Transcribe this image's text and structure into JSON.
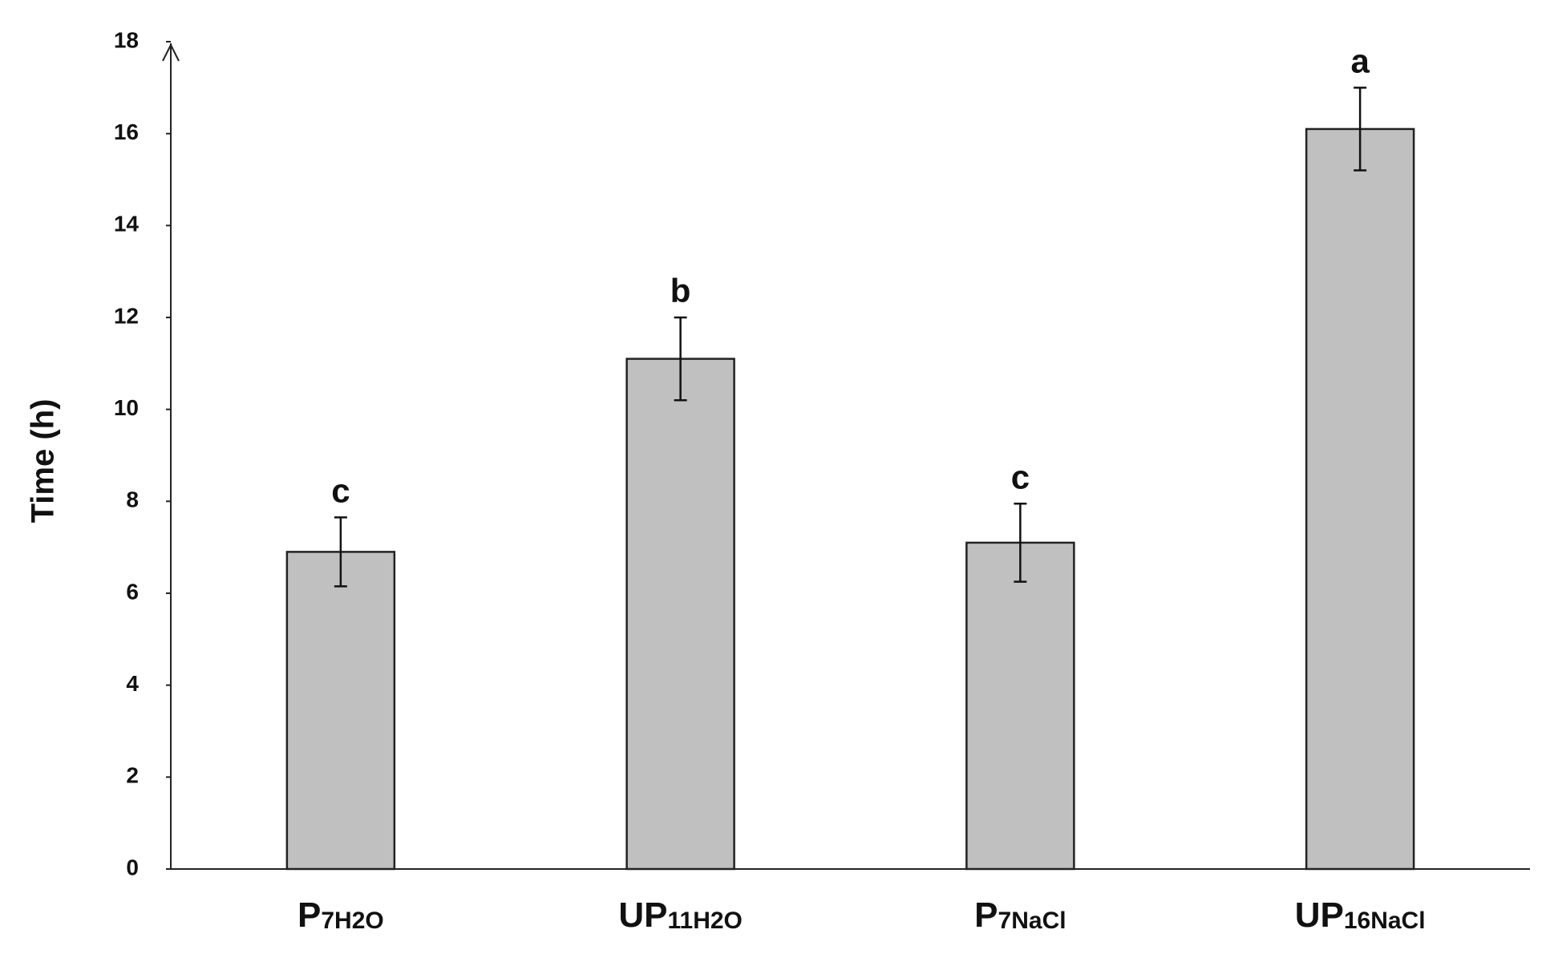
{
  "chart_data": {
    "type": "bar",
    "y_label": "Time (h)",
    "categories": [
      "P",
      "UP",
      "P",
      "UP"
    ],
    "category_subscripts": [
      "7H2O",
      "11H2O",
      "7NaCl",
      "16NaCl"
    ],
    "values": [
      6.9,
      11.1,
      7.1,
      16.1
    ],
    "errors": [
      0.75,
      0.9,
      0.85,
      0.9
    ],
    "annotations": [
      "c",
      "b",
      "c",
      "a"
    ],
    "color": "#c0c0c0",
    "ylim": [
      0,
      18
    ],
    "yticks": [
      0,
      2,
      4,
      6,
      8,
      10,
      12,
      14,
      16,
      18
    ],
    "grid": false
  }
}
